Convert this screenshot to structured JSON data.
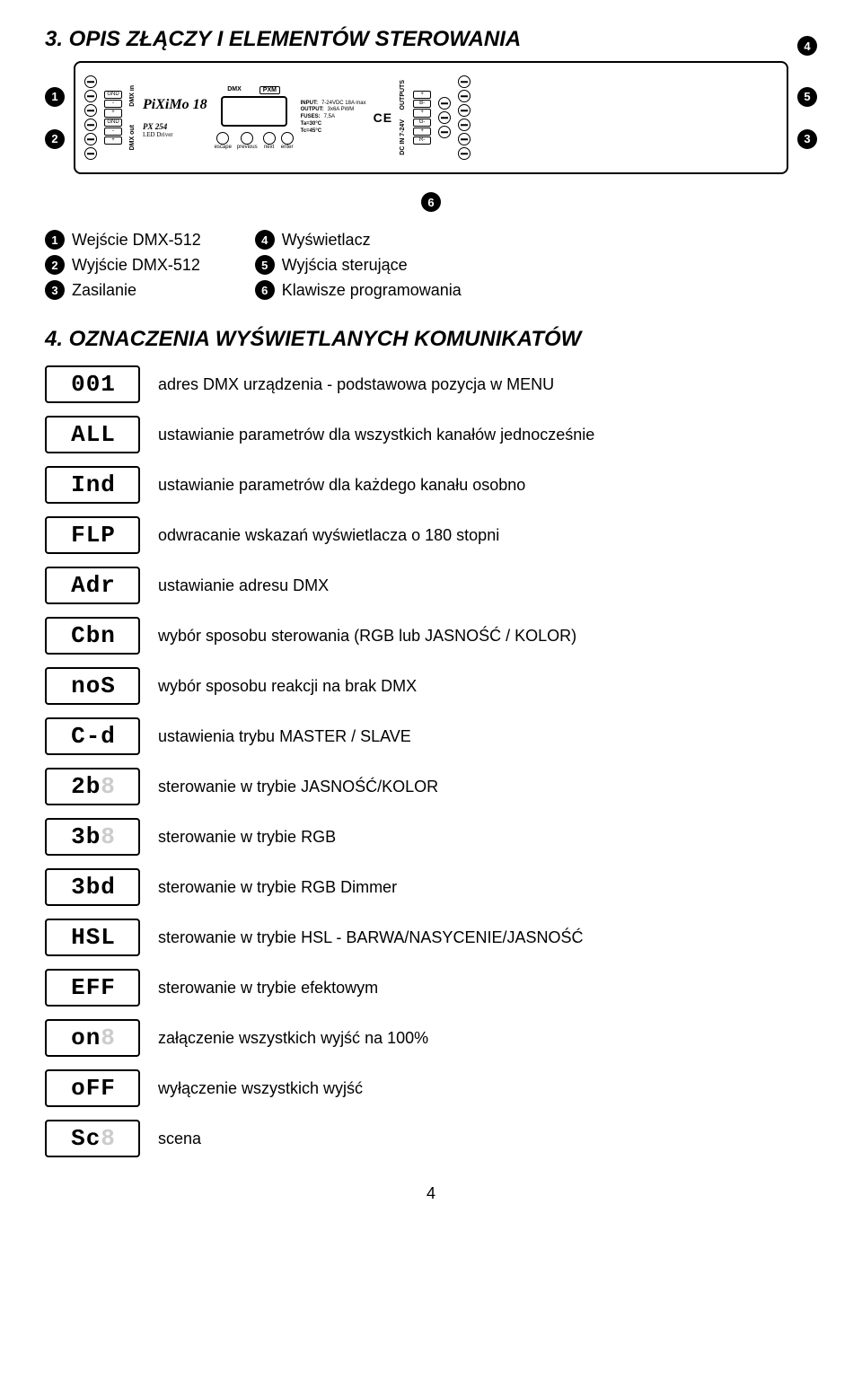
{
  "title_3": "3. OPIS ZŁĄCZY I ELEMENTÓW STEROWANIA",
  "title_4": "4. OZNACZENIA WYŚWIETLANYCH KOMUNIKATÓW",
  "device": {
    "brand": "PiXiMo 18",
    "model": "PX 254",
    "subtitle": "LED Driver",
    "dmx_label": "DMX",
    "pxm_label": "PXM",
    "conn_in": [
      "GND",
      "-",
      "+",
      "GND",
      "-",
      "+"
    ],
    "side_in_top": "DMX in",
    "side_in_bot": "DMX out",
    "conn_out_labels": [
      "+",
      "B-",
      "+",
      "G-",
      "+",
      "R-"
    ],
    "outputs_label": "OUTPUTS",
    "dc_label": "DC IN 7-24V",
    "buttons": [
      "escape",
      "previous",
      "next",
      "enter"
    ],
    "specs": [
      {
        "k": "INPUT:",
        "v": "7-24VDC 18A max"
      },
      {
        "k": "OUTPUT:",
        "v": "3x6A PWM"
      },
      {
        "k": "FUSES:",
        "v": "7,5A"
      },
      {
        "k": "Ta=30°C",
        "v": ""
      },
      {
        "k": "Tc=45°C",
        "v": ""
      }
    ]
  },
  "legend_left": [
    {
      "n": "1",
      "t": "Wejście DMX-512"
    },
    {
      "n": "2",
      "t": "Wyjście DMX-512"
    },
    {
      "n": "3",
      "t": "Zasilanie"
    }
  ],
  "legend_right": [
    {
      "n": "4",
      "t": "Wyświetlacz"
    },
    {
      "n": "5",
      "t": "Wyjścia sterujące"
    },
    {
      "n": "6",
      "t": "Klawisze programowania"
    }
  ],
  "codes": [
    {
      "seg": [
        "0",
        "0",
        "1"
      ],
      "ghost": [
        false,
        false,
        false
      ],
      "desc": "adres DMX urządzenia - podstawowa pozycja w MENU"
    },
    {
      "seg": [
        "A",
        "L",
        "L"
      ],
      "ghost": [
        false,
        false,
        false
      ],
      "desc": "ustawianie parametrów dla wszystkich kanałów jednocześnie"
    },
    {
      "seg": [
        "I",
        "n",
        "d"
      ],
      "ghost": [
        false,
        false,
        false
      ],
      "desc": "ustawianie parametrów dla każdego kanału osobno"
    },
    {
      "seg": [
        "F",
        "L",
        "P"
      ],
      "ghost": [
        false,
        false,
        false
      ],
      "desc": "odwracanie wskazań wyświetlacza o 180 stopni"
    },
    {
      "seg": [
        "A",
        "d",
        "r"
      ],
      "ghost": [
        false,
        false,
        false
      ],
      "desc": "ustawianie adresu DMX"
    },
    {
      "seg": [
        "C",
        "b",
        "n"
      ],
      "ghost": [
        false,
        false,
        false
      ],
      "desc": "wybór sposobu sterowania (RGB lub JASNOŚĆ / KOLOR)"
    },
    {
      "seg": [
        "n",
        "o",
        "S"
      ],
      "ghost": [
        false,
        false,
        false
      ],
      "desc": "wybór sposobu reakcji na brak DMX"
    },
    {
      "seg": [
        "C",
        "-",
        "d"
      ],
      "ghost": [
        false,
        false,
        false
      ],
      "desc": "ustawienia trybu MASTER / SLAVE"
    },
    {
      "seg": [
        "2",
        "b",
        "8"
      ],
      "ghost": [
        false,
        false,
        true
      ],
      "desc": "sterowanie w trybie JASNOŚĆ/KOLOR"
    },
    {
      "seg": [
        "3",
        "b",
        "8"
      ],
      "ghost": [
        false,
        false,
        true
      ],
      "desc": "sterowanie w trybie RGB"
    },
    {
      "seg": [
        "3",
        "b",
        "d"
      ],
      "ghost": [
        false,
        false,
        false
      ],
      "desc": "sterowanie w trybie RGB Dimmer"
    },
    {
      "seg": [
        "H",
        "S",
        "L"
      ],
      "ghost": [
        false,
        false,
        false
      ],
      "desc": "sterowanie w trybie HSL - BARWA/NASYCENIE/JASNOŚĆ"
    },
    {
      "seg": [
        "E",
        "F",
        "F"
      ],
      "ghost": [
        false,
        false,
        false
      ],
      "desc": "sterowanie w trybie efektowym"
    },
    {
      "seg": [
        "o",
        "n",
        "8"
      ],
      "ghost": [
        false,
        false,
        true
      ],
      "desc": "załączenie wszystkich wyjść na 100%"
    },
    {
      "seg": [
        "o",
        "F",
        "F"
      ],
      "ghost": [
        false,
        false,
        false
      ],
      "desc": "wyłączenie wszystkich wyjść"
    },
    {
      "seg": [
        "S",
        "c",
        "8"
      ],
      "ghost": [
        false,
        false,
        true
      ],
      "desc": "scena"
    }
  ],
  "page": "4"
}
